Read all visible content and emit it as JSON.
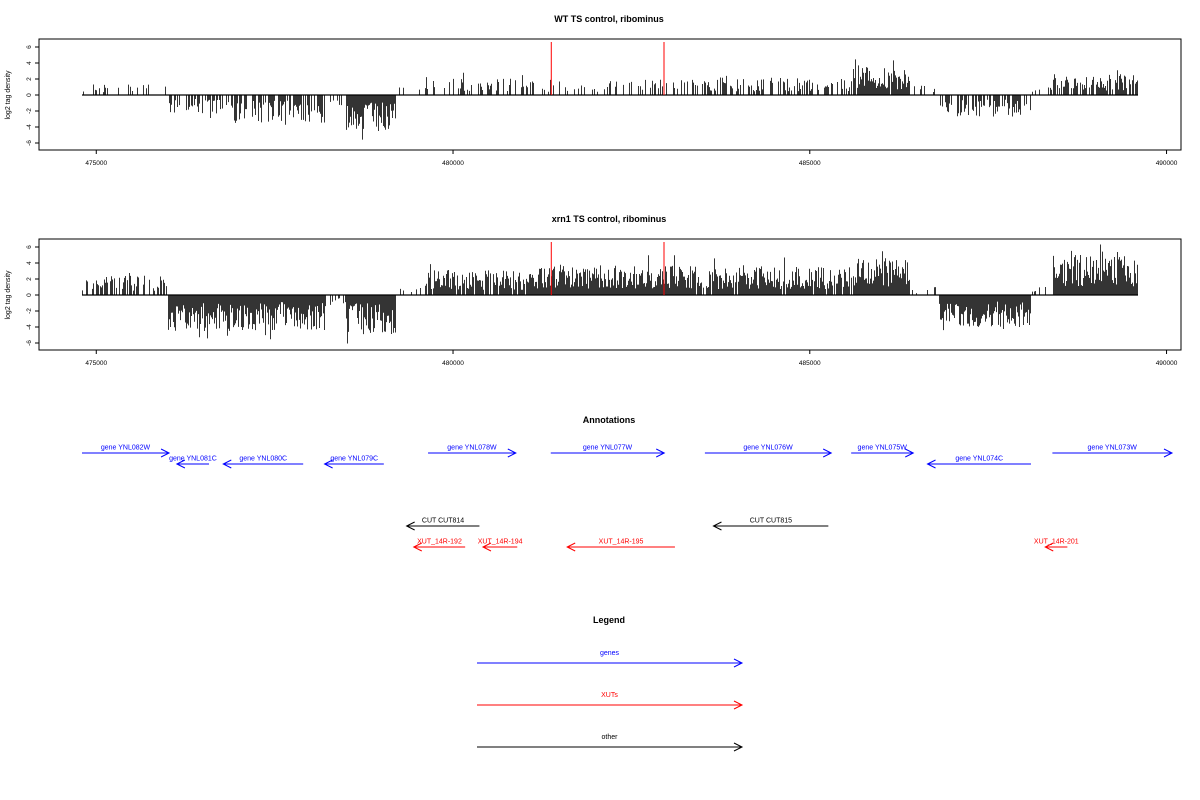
{
  "colors": {
    "axis": "#000000",
    "bars": "#000000",
    "markers": "#ff0000",
    "genes": "#0000ff",
    "xuts": "#ff0000",
    "other": "#000000"
  },
  "chart_data": [
    {
      "type": "bar",
      "title": "WT TS control, ribominus",
      "ylabel": "log2 tag density",
      "xlim": [
        474800,
        489600
      ],
      "ylim": [
        -6.5,
        7
      ],
      "xticks": [
        475000,
        480000,
        485000,
        490000
      ],
      "yticks": [
        -6,
        -4,
        -2,
        0,
        2,
        4,
        6
      ],
      "markers": [
        481370,
        482950
      ],
      "marker_height": 7,
      "segments": [
        {
          "start": 474800,
          "end": 476000,
          "sign": 1,
          "density": 0.22,
          "amp": 1.4
        },
        {
          "start": 476000,
          "end": 476900,
          "sign": -1,
          "density": 0.6,
          "amp": 2.3
        },
        {
          "start": 476900,
          "end": 478200,
          "sign": -1,
          "density": 0.55,
          "amp": 3.5
        },
        {
          "start": 478200,
          "end": 478500,
          "sign": -1,
          "density": 0.25,
          "amp": 2.0
        },
        {
          "start": 478500,
          "end": 479200,
          "sign": -1,
          "density": 1.0,
          "amp": 4.6
        },
        {
          "start": 479200,
          "end": 479600,
          "sign": 1,
          "density": 0.1,
          "amp": 1.0
        },
        {
          "start": 479600,
          "end": 481100,
          "sign": 1,
          "density": 0.35,
          "amp": 2.3
        },
        {
          "start": 481100,
          "end": 483400,
          "sign": 1,
          "density": 0.28,
          "amp": 2.0
        },
        {
          "start": 483400,
          "end": 485600,
          "sign": 1,
          "density": 0.45,
          "amp": 2.2
        },
        {
          "start": 485600,
          "end": 486400,
          "sign": 1,
          "density": 0.95,
          "amp": 3.4
        },
        {
          "start": 486400,
          "end": 486800,
          "sign": 1,
          "density": 0.2,
          "amp": 1.2
        },
        {
          "start": 486800,
          "end": 488100,
          "sign": -1,
          "density": 0.6,
          "amp": 2.8
        },
        {
          "start": 488100,
          "end": 488400,
          "sign": 1,
          "density": 0.2,
          "amp": 1.0
        },
        {
          "start": 488400,
          "end": 489600,
          "sign": 1,
          "density": 0.75,
          "amp": 2.6
        }
      ]
    },
    {
      "type": "bar",
      "title": "xrn1 TS control, ribominus",
      "ylabel": "log2 tag density",
      "xlim": [
        474800,
        489600
      ],
      "ylim": [
        -6.5,
        7
      ],
      "xticks": [
        475000,
        480000,
        485000,
        490000
      ],
      "yticks": [
        -6,
        -4,
        -2,
        0,
        2,
        4,
        6
      ],
      "markers": [
        481370,
        482950
      ],
      "marker_height": 7,
      "segments": [
        {
          "start": 474800,
          "end": 476000,
          "sign": 1,
          "density": 0.55,
          "amp": 2.4
        },
        {
          "start": 476000,
          "end": 476900,
          "sign": -1,
          "density": 1.0,
          "amp": 4.5
        },
        {
          "start": 476900,
          "end": 478200,
          "sign": -1,
          "density": 1.0,
          "amp": 4.4
        },
        {
          "start": 478200,
          "end": 478500,
          "sign": -1,
          "density": 0.3,
          "amp": 1.5
        },
        {
          "start": 478500,
          "end": 479200,
          "sign": -1,
          "density": 1.0,
          "amp": 5.0
        },
        {
          "start": 479200,
          "end": 479600,
          "sign": 1,
          "density": 0.25,
          "amp": 1.0
        },
        {
          "start": 479600,
          "end": 481100,
          "sign": 1,
          "density": 0.9,
          "amp": 3.2
        },
        {
          "start": 481100,
          "end": 483400,
          "sign": 1,
          "density": 1.0,
          "amp": 3.8
        },
        {
          "start": 483400,
          "end": 485600,
          "sign": 1,
          "density": 0.9,
          "amp": 3.6
        },
        {
          "start": 485600,
          "end": 486400,
          "sign": 1,
          "density": 1.0,
          "amp": 4.6
        },
        {
          "start": 486400,
          "end": 486800,
          "sign": 1,
          "density": 0.2,
          "amp": 1.0
        },
        {
          "start": 486800,
          "end": 488100,
          "sign": -1,
          "density": 1.0,
          "amp": 4.0
        },
        {
          "start": 488100,
          "end": 488400,
          "sign": 1,
          "density": 0.3,
          "amp": 1.0
        },
        {
          "start": 488400,
          "end": 489600,
          "sign": 1,
          "density": 1.0,
          "amp": 5.0
        }
      ]
    }
  ],
  "annotations": {
    "title": "Annotations",
    "features": [
      {
        "label": "gene YNL082W",
        "type": "gene",
        "start": 474800,
        "end": 476020,
        "strand": "+",
        "row": 0
      },
      {
        "label": "gene YNL081C",
        "type": "gene",
        "start": 476130,
        "end": 476580,
        "strand": "-",
        "row": 1
      },
      {
        "label": "gene YNL080C",
        "type": "gene",
        "start": 476780,
        "end": 477900,
        "strand": "-",
        "row": 1
      },
      {
        "label": "gene YNL079C",
        "type": "gene",
        "start": 478200,
        "end": 479030,
        "strand": "-",
        "row": 1
      },
      {
        "label": "gene YNL078W",
        "type": "gene",
        "start": 479650,
        "end": 480880,
        "strand": "+",
        "row": 0
      },
      {
        "label": "gene YNL077W",
        "type": "gene",
        "start": 481370,
        "end": 482960,
        "strand": "+",
        "row": 0
      },
      {
        "label": "gene YNL076W",
        "type": "gene",
        "start": 483530,
        "end": 485300,
        "strand": "+",
        "row": 0
      },
      {
        "label": "gene YNL075W",
        "type": "gene",
        "start": 485580,
        "end": 486450,
        "strand": "+",
        "row": 0
      },
      {
        "label": "gene YNL074C",
        "type": "gene",
        "start": 486650,
        "end": 488100,
        "strand": "-",
        "row": 1
      },
      {
        "label": "gene YNL073W",
        "type": "gene",
        "start": 488400,
        "end": 490150,
        "strand": "+",
        "row": 0
      },
      {
        "label": "CUT CUT814",
        "type": "other",
        "start": 479350,
        "end": 480370,
        "strand": "-",
        "row": 3
      },
      {
        "label": "CUT CUT815",
        "type": "other",
        "start": 483650,
        "end": 485260,
        "strand": "-",
        "row": 3
      },
      {
        "label": "XUT_14R-192",
        "type": "xut",
        "start": 479450,
        "end": 480170,
        "strand": "-",
        "row": 4
      },
      {
        "label": "XUT_14R-194",
        "type": "xut",
        "start": 480420,
        "end": 480900,
        "strand": "-",
        "row": 4
      },
      {
        "label": "XUT_14R-195",
        "type": "xut",
        "start": 481600,
        "end": 483110,
        "strand": "-",
        "row": 4
      },
      {
        "label": "XUT_14R-201",
        "type": "xut",
        "start": 488300,
        "end": 488610,
        "strand": "-",
        "row": 4
      }
    ]
  },
  "legend": {
    "title": "Legend",
    "items": [
      {
        "label": "genes",
        "type": "gene"
      },
      {
        "label": "XUTs",
        "type": "xut"
      },
      {
        "label": "other",
        "type": "other"
      }
    ]
  }
}
